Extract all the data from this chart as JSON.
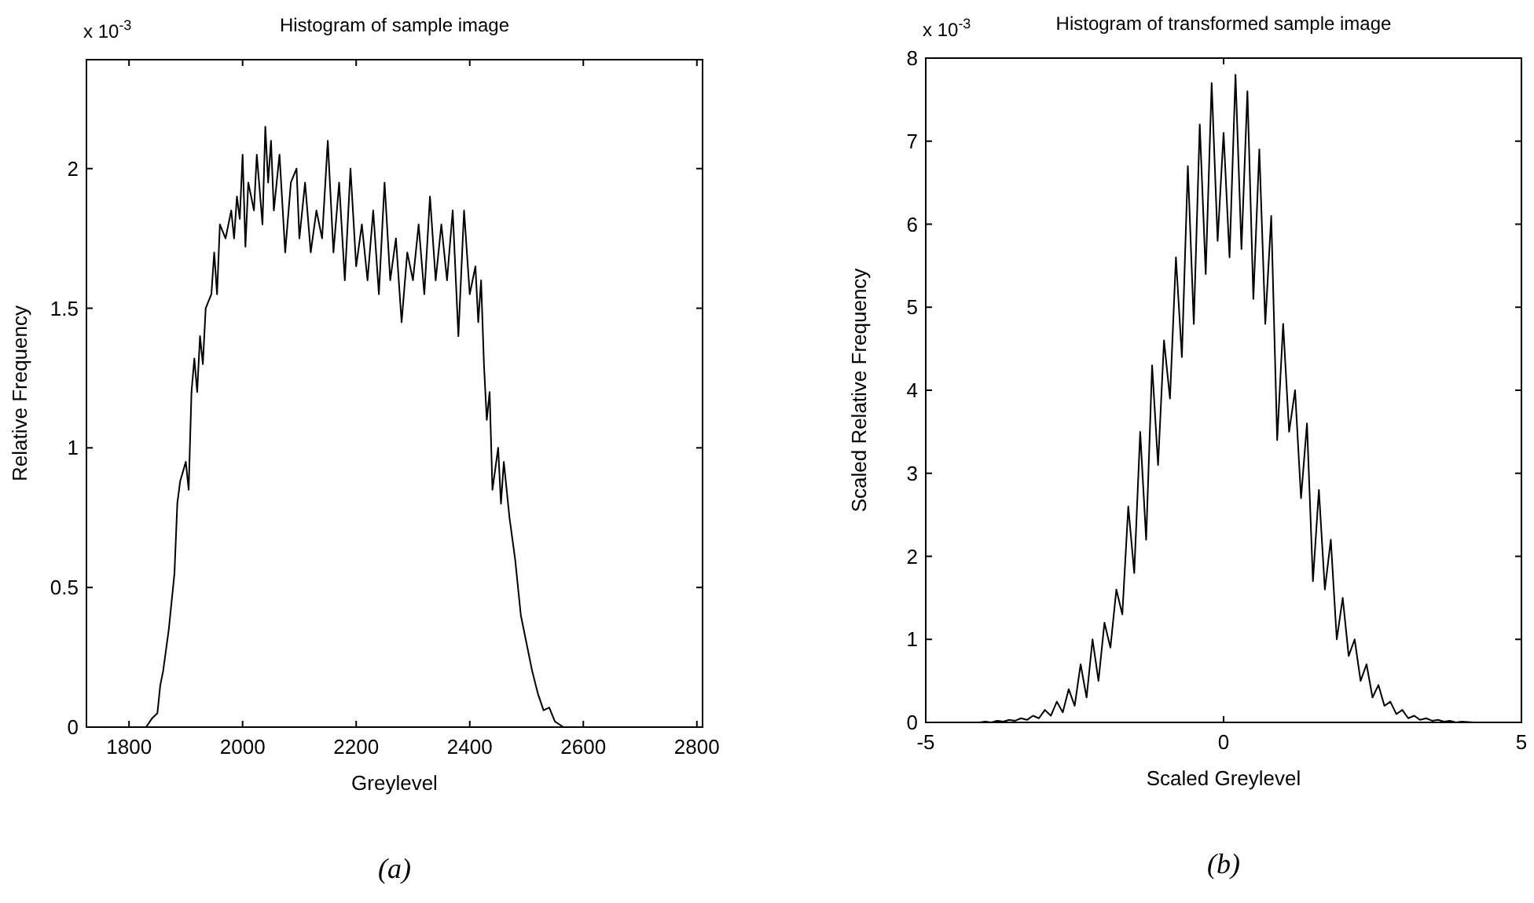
{
  "chart_data": [
    {
      "type": "line",
      "title": "Histogram of sample image",
      "xlabel": "Greylevel",
      "ylabel": "Relative Frequency",
      "annotations": [
        "x 10$^{-3}$",
        "(a)"
      ],
      "xlim": [
        1725,
        2810
      ],
      "ylim": [
        0,
        2.39
      ],
      "xticks": [
        1800,
        2000,
        2200,
        2400,
        2600,
        2800
      ],
      "yticks": [
        0,
        0.5,
        1,
        1.5,
        2
      ],
      "grid": false,
      "series": [
        {
          "color": "#000000",
          "x": [
            1830,
            1840,
            1850,
            1855,
            1860,
            1870,
            1880,
            1885,
            1890,
            1900,
            1905,
            1910,
            1915,
            1920,
            1925,
            1930,
            1935,
            1945,
            1950,
            1955,
            1960,
            1970,
            1980,
            1985,
            1990,
            1995,
            2000,
            2005,
            2010,
            2020,
            2025,
            2035,
            2040,
            2045,
            2050,
            2055,
            2065,
            2075,
            2085,
            2095,
            2100,
            2110,
            2120,
            2130,
            2140,
            2150,
            2160,
            2170,
            2180,
            2190,
            2200,
            2210,
            2220,
            2230,
            2240,
            2250,
            2260,
            2270,
            2280,
            2290,
            2300,
            2310,
            2320,
            2330,
            2340,
            2350,
            2360,
            2370,
            2380,
            2390,
            2400,
            2410,
            2415,
            2420,
            2425,
            2430,
            2435,
            2440,
            2450,
            2455,
            2460,
            2470,
            2480,
            2490,
            2500,
            2510,
            2520,
            2530,
            2540,
            2550,
            2565
          ],
          "values": [
            0,
            0.03,
            0.05,
            0.15,
            0.2,
            0.35,
            0.55,
            0.8,
            0.88,
            0.95,
            0.85,
            1.2,
            1.32,
            1.2,
            1.4,
            1.3,
            1.5,
            1.55,
            1.7,
            1.55,
            1.8,
            1.75,
            1.85,
            1.75,
            1.9,
            1.82,
            2.05,
            1.72,
            1.95,
            1.85,
            2.05,
            1.8,
            2.15,
            1.95,
            2.1,
            1.85,
            2.05,
            1.7,
            1.95,
            2.0,
            1.75,
            1.95,
            1.7,
            1.85,
            1.75,
            2.1,
            1.7,
            1.95,
            1.6,
            2.0,
            1.65,
            1.8,
            1.6,
            1.85,
            1.55,
            1.95,
            1.6,
            1.75,
            1.45,
            1.7,
            1.6,
            1.8,
            1.55,
            1.9,
            1.6,
            1.8,
            1.6,
            1.85,
            1.4,
            1.85,
            1.55,
            1.65,
            1.45,
            1.6,
            1.3,
            1.1,
            1.2,
            0.85,
            1.0,
            0.8,
            0.95,
            0.75,
            0.6,
            0.4,
            0.3,
            0.2,
            0.12,
            0.06,
            0.07,
            0.02,
            0
          ]
        }
      ]
    },
    {
      "type": "line",
      "title": "Histogram of transformed sample image",
      "xlabel": "Scaled Greylevel",
      "ylabel": "Scaled Relative Frequency",
      "annotations": [
        "x 10$^{-3}$",
        "(b)"
      ],
      "xlim": [
        -5,
        5
      ],
      "ylim": [
        0,
        8
      ],
      "xticks": [
        -5,
        0,
        5
      ],
      "yticks": [
        0,
        1,
        2,
        3,
        4,
        5,
        6,
        7,
        8
      ],
      "grid": false,
      "series": [
        {
          "color": "#000000",
          "x": [
            -4.2,
            -4.1,
            -4.0,
            -3.9,
            -3.8,
            -3.7,
            -3.6,
            -3.5,
            -3.4,
            -3.3,
            -3.2,
            -3.1,
            -3.0,
            -2.9,
            -2.8,
            -2.7,
            -2.6,
            -2.5,
            -2.4,
            -2.3,
            -2.2,
            -2.1,
            -2.0,
            -1.9,
            -1.8,
            -1.7,
            -1.6,
            -1.5,
            -1.4,
            -1.3,
            -1.2,
            -1.1,
            -1.0,
            -0.9,
            -0.8,
            -0.7,
            -0.6,
            -0.5,
            -0.4,
            -0.3,
            -0.2,
            -0.1,
            0,
            0.1,
            0.2,
            0.3,
            0.4,
            0.5,
            0.6,
            0.7,
            0.8,
            0.9,
            1.0,
            1.1,
            1.2,
            1.3,
            1.4,
            1.5,
            1.6,
            1.7,
            1.8,
            1.9,
            2.0,
            2.1,
            2.2,
            2.3,
            2.4,
            2.5,
            2.6,
            2.7,
            2.8,
            2.9,
            3.0,
            3.1,
            3.2,
            3.3,
            3.4,
            3.5,
            3.6,
            3.7,
            3.8,
            3.9,
            4.0,
            4.2
          ],
          "values": [
            0,
            0,
            0.01,
            0,
            0.02,
            0.01,
            0.03,
            0.02,
            0.05,
            0.03,
            0.08,
            0.05,
            0.15,
            0.08,
            0.25,
            0.12,
            0.4,
            0.2,
            0.7,
            0.3,
            1.0,
            0.5,
            1.2,
            0.9,
            1.6,
            1.3,
            2.6,
            1.8,
            3.5,
            2.2,
            4.3,
            3.1,
            4.6,
            3.9,
            5.6,
            4.4,
            6.7,
            4.8,
            7.2,
            5.4,
            7.7,
            5.8,
            7.1,
            5.6,
            7.8,
            5.7,
            7.6,
            5.1,
            6.9,
            4.8,
            6.1,
            3.4,
            4.8,
            3.5,
            4.0,
            2.7,
            3.6,
            1.7,
            2.8,
            1.6,
            2.2,
            1.0,
            1.5,
            0.8,
            1.0,
            0.5,
            0.7,
            0.3,
            0.45,
            0.2,
            0.25,
            0.1,
            0.15,
            0.05,
            0.08,
            0.03,
            0.05,
            0.02,
            0.03,
            0.01,
            0.02,
            0,
            0.01,
            0
          ]
        }
      ]
    }
  ]
}
